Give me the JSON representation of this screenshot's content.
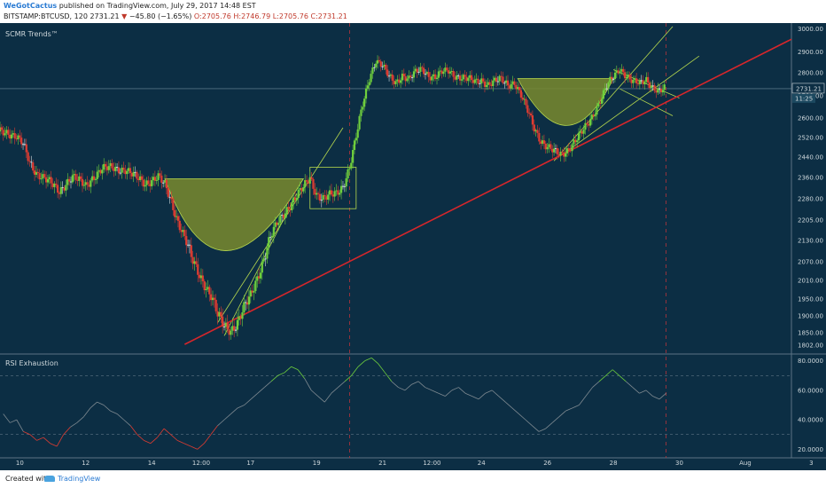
{
  "header": {
    "author": "WeGotCactus",
    "published": "published on TradingView.com, July 29, 2017 14:48 EST",
    "symbol": "BITSTAMP:BTCUSD, 120",
    "last": "2731.21",
    "arrow": "▼",
    "change": "−45.80 (−1.65%)",
    "open": "O:2705.76",
    "high": "H:2746.79",
    "low": "L:2705.76",
    "close": "C:2731.21"
  },
  "footer": {
    "created_with": "Created with",
    "brand": "TradingView"
  },
  "colors": {
    "bg": "#0c2e44",
    "up": "#6fcf3d",
    "down": "#e03c31",
    "neutral": "#cfd8dc",
    "trendline": "#d6262b",
    "channel": "#b7d94e",
    "cup_fill": "#7a8a2e",
    "rsi_line": "#7f8a91"
  },
  "chart_data": [
    {
      "type": "candlestick",
      "title": "SCMR Trends™",
      "ylim": [
        1770,
        3010
      ],
      "y_ticks": [
        "3000.00",
        "2900.00",
        "2800.00",
        "2700.00",
        "2600.00",
        "2520.00",
        "2440.00",
        "2360.00",
        "2280.00",
        "2205.00",
        "2130.00",
        "2070.00",
        "2010.00",
        "1950.00",
        "1900.00",
        "1850.00",
        "1802.00"
      ],
      "x_ticks": [
        "10",
        "12",
        "14",
        "12:00",
        "17",
        "19",
        "21",
        "12:00",
        "24",
        "26",
        "28",
        "30",
        "Aug",
        "3"
      ],
      "last_price_label": "2731.21",
      "countdown_label": "11:25",
      "close_path": [
        [
          9.0,
          2560
        ],
        [
          9.3,
          2550
        ],
        [
          9.6,
          2545
        ],
        [
          9.9,
          2520
        ],
        [
          10.1,
          2490
        ],
        [
          10.3,
          2420
        ],
        [
          10.5,
          2380
        ],
        [
          10.7,
          2360
        ],
        [
          11.0,
          2330
        ],
        [
          11.2,
          2310
        ],
        [
          11.4,
          2340
        ],
        [
          11.6,
          2360
        ],
        [
          11.8,
          2345
        ],
        [
          12.0,
          2330
        ],
        [
          12.2,
          2360
        ],
        [
          12.5,
          2390
        ],
        [
          12.8,
          2400
        ],
        [
          13.0,
          2395
        ],
        [
          13.2,
          2390
        ],
        [
          13.4,
          2370
        ],
        [
          13.6,
          2355
        ],
        [
          13.8,
          2340
        ],
        [
          14.0,
          2350
        ],
        [
          14.2,
          2360
        ],
        [
          14.4,
          2330
        ],
        [
          14.6,
          2270
        ],
        [
          14.8,
          2200
        ],
        [
          15.0,
          2140
        ],
        [
          15.2,
          2080
        ],
        [
          15.4,
          2040
        ],
        [
          15.6,
          2000
        ],
        [
          15.8,
          1960
        ],
        [
          16.0,
          1900
        ],
        [
          16.2,
          1870
        ],
        [
          16.4,
          1860
        ],
        [
          16.6,
          1880
        ],
        [
          16.8,
          1920
        ],
        [
          17.0,
          1960
        ],
        [
          17.2,
          2020
        ],
        [
          17.4,
          2080
        ],
        [
          17.6,
          2140
        ],
        [
          17.8,
          2190
        ],
        [
          18.0,
          2230
        ],
        [
          18.2,
          2260
        ],
        [
          18.4,
          2290
        ],
        [
          18.6,
          2320
        ],
        [
          18.8,
          2360
        ],
        [
          19.0,
          2300
        ],
        [
          19.2,
          2280
        ],
        [
          19.4,
          2290
        ],
        [
          19.6,
          2300
        ],
        [
          19.8,
          2330
        ],
        [
          20.0,
          2400
        ],
        [
          20.2,
          2520
        ],
        [
          20.4,
          2660
        ],
        [
          20.6,
          2780
        ],
        [
          20.8,
          2860
        ],
        [
          21.0,
          2830
        ],
        [
          21.2,
          2780
        ],
        [
          21.4,
          2760
        ],
        [
          21.6,
          2790
        ],
        [
          21.8,
          2770
        ],
        [
          22.0,
          2800
        ],
        [
          22.2,
          2820
        ],
        [
          22.4,
          2790
        ],
        [
          22.6,
          2780
        ],
        [
          22.8,
          2800
        ],
        [
          23.0,
          2810
        ],
        [
          23.2,
          2790
        ],
        [
          23.4,
          2780
        ],
        [
          23.6,
          2770
        ],
        [
          23.8,
          2760
        ],
        [
          24.0,
          2770
        ],
        [
          24.2,
          2750
        ],
        [
          24.4,
          2760
        ],
        [
          24.6,
          2770
        ],
        [
          24.8,
          2750
        ],
        [
          25.0,
          2760
        ],
        [
          25.2,
          2700
        ],
        [
          25.4,
          2630
        ],
        [
          25.6,
          2560
        ],
        [
          25.8,
          2510
        ],
        [
          26.0,
          2480
        ],
        [
          26.2,
          2460
        ],
        [
          26.4,
          2450
        ],
        [
          26.6,
          2470
        ],
        [
          26.8,
          2500
        ],
        [
          27.0,
          2530
        ],
        [
          27.2,
          2570
        ],
        [
          27.4,
          2620
        ],
        [
          27.6,
          2680
        ],
        [
          27.8,
          2740
        ],
        [
          28.0,
          2780
        ],
        [
          28.2,
          2820
        ],
        [
          28.4,
          2790
        ],
        [
          28.6,
          2760
        ],
        [
          28.8,
          2750
        ],
        [
          29.0,
          2770
        ],
        [
          29.2,
          2740
        ],
        [
          29.4,
          2720
        ],
        [
          29.6,
          2731
        ]
      ]
    },
    {
      "type": "line",
      "title": "RSI Exhaustion",
      "ylim": [
        16,
        84
      ],
      "y_ticks": [
        "80.0000",
        "60.0000",
        "40.0000",
        "20.0000"
      ],
      "levels": [
        70,
        30
      ],
      "values": [
        44,
        38,
        40,
        32,
        30,
        26,
        28,
        24,
        22,
        30,
        35,
        38,
        42,
        48,
        52,
        50,
        46,
        44,
        40,
        36,
        30,
        26,
        24,
        28,
        34,
        30,
        26,
        24,
        22,
        20,
        24,
        30,
        36,
        40,
        44,
        48,
        50,
        54,
        58,
        62,
        66,
        70,
        72,
        76,
        74,
        68,
        60,
        56,
        52,
        58,
        62,
        66,
        70,
        76,
        80,
        82,
        78,
        72,
        66,
        62,
        60,
        64,
        66,
        62,
        60,
        58,
        56,
        60,
        62,
        58,
        56,
        54,
        58,
        60,
        56,
        52,
        48,
        44,
        40,
        36,
        32,
        34,
        38,
        42,
        46,
        48,
        50,
        56,
        62,
        66,
        70,
        74,
        70,
        66,
        62,
        58,
        60,
        56,
        54,
        58
      ]
    }
  ]
}
